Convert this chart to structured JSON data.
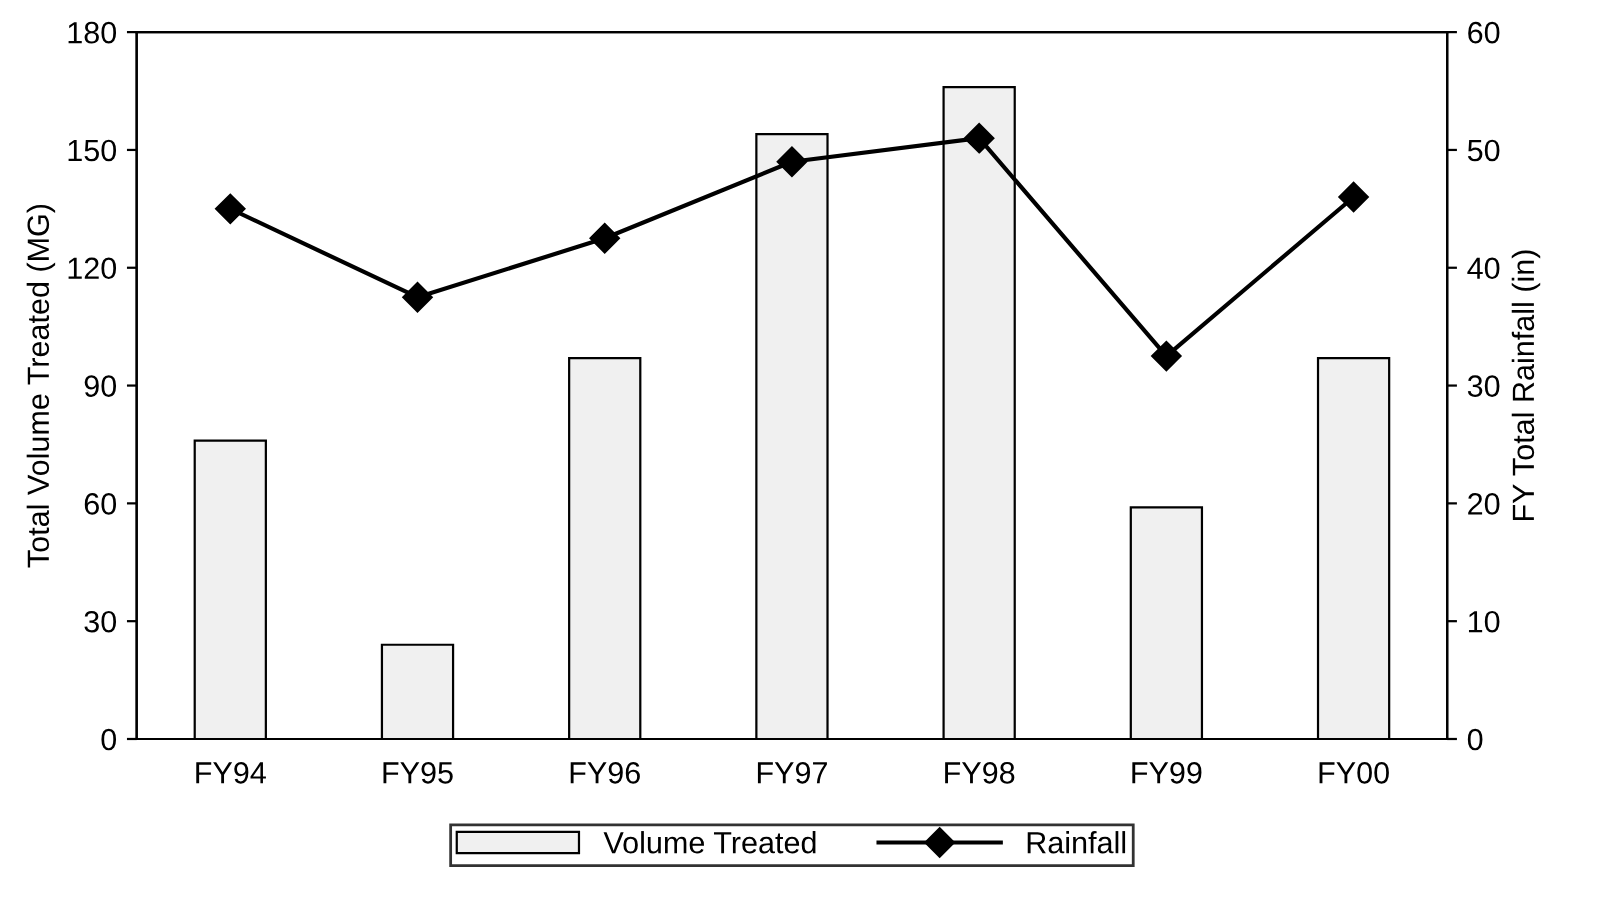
{
  "chart_data": {
    "type": "bar",
    "categories": [
      "FY94",
      "FY95",
      "FY96",
      "FY97",
      "FY98",
      "FY99",
      "FY00"
    ],
    "ylabel": "Total Volume Treated (MG)",
    "y2label": "FY Total Rainfall (in)",
    "ylim": [
      0,
      180
    ],
    "yticks": [
      0,
      30,
      60,
      90,
      120,
      150,
      180
    ],
    "y2lim": [
      0,
      60
    ],
    "y2ticks": [
      0,
      10,
      20,
      30,
      40,
      50,
      60
    ],
    "legend": "bottom",
    "grid": false,
    "series": [
      {
        "name": "Volume Treated",
        "color": "#f0f0f0",
        "values": [
          76,
          24,
          97,
          154,
          166,
          59,
          97
        ]
      },
      {
        "name": "Rainfall",
        "type": "line",
        "axis": "y2",
        "color": "#000000",
        "marker": "diamond",
        "values": [
          45,
          37.5,
          42.5,
          49,
          51,
          32.5,
          46
        ]
      }
    ]
  }
}
